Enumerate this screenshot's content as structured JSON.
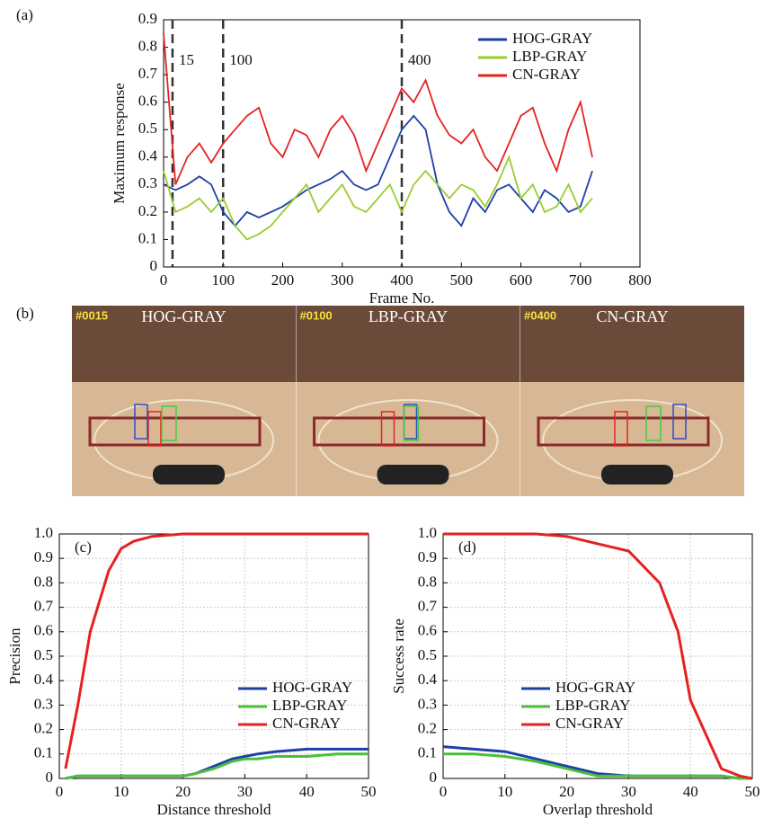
{
  "chart_data": [
    {
      "type": "line",
      "panel_label": "(a)",
      "xlabel": "Frame No.",
      "ylabel": "Maximum response",
      "x": [
        0,
        20,
        40,
        60,
        80,
        100,
        120,
        140,
        160,
        180,
        200,
        220,
        240,
        260,
        280,
        300,
        320,
        340,
        360,
        380,
        400,
        420,
        440,
        460,
        480,
        500,
        520,
        540,
        560,
        580,
        600,
        620,
        640,
        660,
        680,
        700,
        720
      ],
      "series": [
        {
          "name": "HOG-GRAY",
          "color": "#1f3fa8",
          "values": [
            0.3,
            0.28,
            0.3,
            0.33,
            0.3,
            0.2,
            0.15,
            0.2,
            0.18,
            0.2,
            0.22,
            0.25,
            0.28,
            0.3,
            0.32,
            0.35,
            0.3,
            0.28,
            0.3,
            0.4,
            0.5,
            0.55,
            0.5,
            0.3,
            0.2,
            0.15,
            0.25,
            0.2,
            0.28,
            0.3,
            0.25,
            0.2,
            0.28,
            0.25,
            0.2,
            0.22,
            0.35
          ]
        },
        {
          "name": "LBP-GRAY",
          "color": "#9acd32",
          "values": [
            0.35,
            0.2,
            0.22,
            0.25,
            0.2,
            0.25,
            0.15,
            0.1,
            0.12,
            0.15,
            0.2,
            0.25,
            0.3,
            0.2,
            0.25,
            0.3,
            0.22,
            0.2,
            0.25,
            0.3,
            0.2,
            0.3,
            0.35,
            0.3,
            0.25,
            0.3,
            0.28,
            0.22,
            0.3,
            0.4,
            0.25,
            0.3,
            0.2,
            0.22,
            0.3,
            0.2,
            0.25
          ]
        },
        {
          "name": "CN-GRAY",
          "color": "#e52222",
          "values": [
            0.85,
            0.3,
            0.4,
            0.45,
            0.38,
            0.45,
            0.5,
            0.55,
            0.58,
            0.45,
            0.4,
            0.5,
            0.48,
            0.4,
            0.5,
            0.55,
            0.48,
            0.35,
            0.45,
            0.55,
            0.65,
            0.6,
            0.68,
            0.55,
            0.48,
            0.45,
            0.5,
            0.4,
            0.35,
            0.45,
            0.55,
            0.58,
            0.45,
            0.35,
            0.5,
            0.6,
            0.4
          ]
        }
      ],
      "annotations": [
        {
          "x": 15,
          "label": "15"
        },
        {
          "x": 100,
          "label": "100"
        },
        {
          "x": 400,
          "label": "400"
        }
      ],
      "xlim": [
        0,
        800
      ],
      "xticks": [
        0,
        100,
        200,
        300,
        400,
        500,
        600,
        700,
        800
      ],
      "ylim": [
        0,
        0.9
      ],
      "yticks": [
        0,
        0.1,
        0.2,
        0.3,
        0.4,
        0.5,
        0.6,
        0.7,
        0.8,
        0.9
      ],
      "grid": false,
      "legend": "upper right"
    },
    {
      "type": "line",
      "panel_label": "(c)",
      "xlabel": "Distance threshold",
      "ylabel": "Precision",
      "x": [
        1,
        3,
        5,
        8,
        10,
        12,
        15,
        20,
        22,
        25,
        28,
        30,
        32,
        35,
        40,
        45,
        50
      ],
      "series": [
        {
          "name": "HOG-GRAY",
          "color": "#1f3fa8",
          "values": [
            0,
            0.01,
            0.01,
            0.01,
            0.01,
            0.01,
            0.01,
            0.01,
            0.02,
            0.05,
            0.08,
            0.09,
            0.1,
            0.11,
            0.12,
            0.12,
            0.12
          ]
        },
        {
          "name": "LBP-GRAY",
          "color": "#4cbf3a",
          "values": [
            0,
            0.01,
            0.01,
            0.01,
            0.01,
            0.01,
            0.01,
            0.01,
            0.02,
            0.04,
            0.07,
            0.08,
            0.08,
            0.09,
            0.09,
            0.1,
            0.1
          ]
        },
        {
          "name": "CN-GRAY",
          "color": "#e52222",
          "values": [
            0.04,
            0.3,
            0.6,
            0.85,
            0.94,
            0.97,
            0.99,
            1,
            1,
            1,
            1,
            1,
            1,
            1,
            1,
            1,
            1
          ]
        }
      ],
      "xlim": [
        0,
        50
      ],
      "xticks": [
        0,
        10,
        20,
        30,
        40,
        50
      ],
      "ylim": [
        0,
        1
      ],
      "yticks": [
        0,
        0.1,
        0.2,
        0.3,
        0.4,
        0.5,
        0.6,
        0.7,
        0.8,
        0.9,
        {
          "value": 1,
          "label": "1.0"
        }
      ],
      "grid": true,
      "legend": "lower right"
    },
    {
      "type": "line",
      "panel_label": "(d)",
      "xlabel": "Overlap threshold",
      "ylabel": "Success rate",
      "x": [
        0,
        5,
        10,
        15,
        20,
        25,
        30,
        35,
        38,
        40,
        45,
        48,
        50
      ],
      "series": [
        {
          "name": "HOG-GRAY",
          "color": "#1f3fa8",
          "values": [
            0.13,
            0.12,
            0.11,
            0.08,
            0.05,
            0.02,
            0.01,
            0.01,
            0.01,
            0.01,
            0.01,
            0,
            0
          ]
        },
        {
          "name": "LBP-GRAY",
          "color": "#4cbf3a",
          "values": [
            0.1,
            0.1,
            0.09,
            0.07,
            0.04,
            0.01,
            0.01,
            0.01,
            0.01,
            0.01,
            0.01,
            0,
            0
          ]
        },
        {
          "name": "CN-GRAY",
          "color": "#e52222",
          "values": [
            1,
            1,
            1,
            1,
            0.99,
            0.96,
            0.93,
            0.8,
            0.6,
            0.32,
            0.04,
            0.01,
            0
          ]
        }
      ],
      "xlim": [
        0,
        50
      ],
      "xticks": [
        0,
        10,
        20,
        30,
        40,
        50
      ],
      "ylim": [
        0,
        1
      ],
      "yticks": [
        0,
        0.1,
        0.2,
        0.3,
        0.4,
        0.5,
        0.6,
        0.7,
        0.8,
        0.9,
        {
          "value": 1,
          "label": "1.0"
        }
      ],
      "grid": true,
      "legend": "lower center"
    }
  ],
  "frames": {
    "panel_label": "(b)",
    "items": [
      {
        "id": "#0015",
        "label": "HOG-GRAY"
      },
      {
        "id": "#0100",
        "label": "LBP-GRAY"
      },
      {
        "id": "#0400",
        "label": "CN-GRAY"
      }
    ]
  }
}
